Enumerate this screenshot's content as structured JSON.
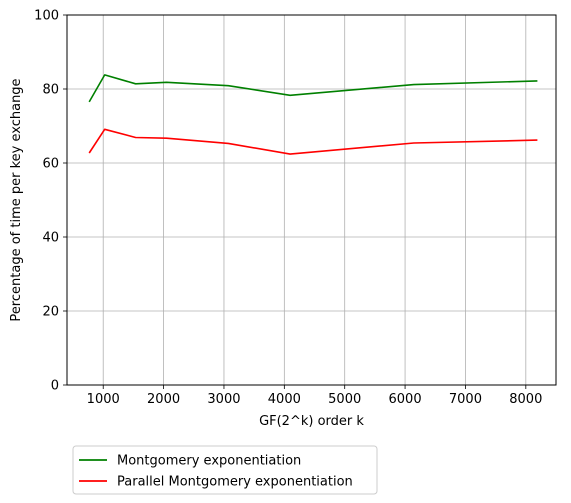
{
  "chart_data": {
    "type": "line",
    "title": "",
    "xlabel": "GF(2^k) order k",
    "ylabel": "Percentage of time per key exchange",
    "xlim": [
      400,
      8500
    ],
    "ylim": [
      0,
      100
    ],
    "xticks": [
      1000,
      2000,
      3000,
      4000,
      5000,
      6000,
      7000,
      8000
    ],
    "yticks": [
      0,
      20,
      40,
      60,
      80,
      100
    ],
    "grid": true,
    "legend_position": "below-left",
    "series": [
      {
        "name": "Montgomery exponentiation",
        "color": "#008000",
        "x": [
          768,
          1024,
          1536,
          2048,
          3072,
          4096,
          6144,
          8192
        ],
        "y": [
          76.5,
          83.8,
          81.4,
          81.8,
          80.9,
          78.3,
          81.2,
          82.2
        ]
      },
      {
        "name": "Parallel Montgomery exponentiation",
        "color": "#ff0000",
        "x": [
          768,
          1024,
          1536,
          2048,
          3072,
          4096,
          6144,
          8192
        ],
        "y": [
          62.7,
          69.1,
          66.9,
          66.7,
          65.3,
          62.4,
          65.4,
          66.2
        ]
      }
    ]
  }
}
